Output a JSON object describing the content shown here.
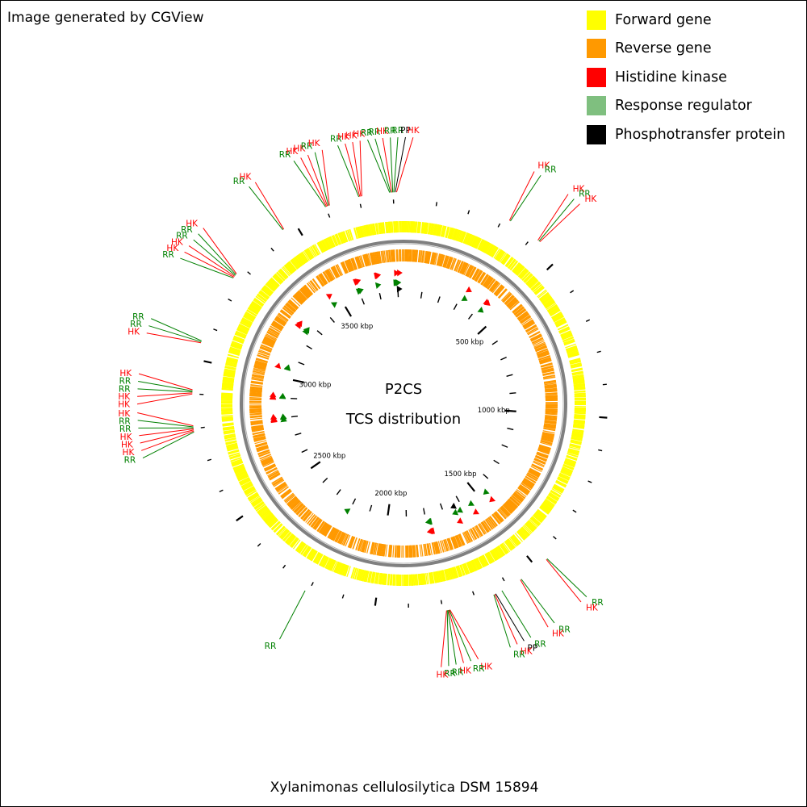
{
  "credit": "Image generated by CGView",
  "legend": [
    {
      "label": "Forward gene",
      "color": "#ffff00",
      "icon": "square-swatch"
    },
    {
      "label": "Reverse gene",
      "color": "#ff9900",
      "icon": "square-swatch"
    },
    {
      "label": "Histidine kinase",
      "color": "#ff0000",
      "icon": "square-swatch"
    },
    {
      "label": "Response regulator",
      "color": "#7fbf7f",
      "icon": "square-swatch"
    },
    {
      "label": "Phosphotransfer protein",
      "color": "#000000",
      "icon": "square-swatch"
    }
  ],
  "center_title": "P2CS",
  "center_subtitle": "TCS distribution",
  "organism": "Xylanimonas cellulosilytica DSM 15894",
  "genome_length_kbp": 3830,
  "scale_labels": [
    "500 kbp",
    "1000 kbp",
    "1500 kbp",
    "2000 kbp",
    "2500 kbp",
    "3000 kbp",
    "3500 kbp"
  ],
  "scale_positions_kbp": [
    500,
    1000,
    1500,
    2000,
    2500,
    3000,
    3500
  ],
  "colors": {
    "forward": "#ffff00",
    "reverse": "#ff9900",
    "hk": "#ff0000",
    "rr_marker": "#008000",
    "rr_label": "#008000",
    "pp": "#000000",
    "backbone": "#808080"
  },
  "features": [
    {
      "type": "HK",
      "label": "HK",
      "position_kbp": 320
    },
    {
      "type": "RR",
      "label": "RR",
      "position_kbp": 323
    },
    {
      "type": "HK",
      "label": "HK",
      "position_kbp": 420
    },
    {
      "type": "RR",
      "label": "RR",
      "position_kbp": 424
    },
    {
      "type": "HK",
      "label": "HK",
      "position_kbp": 427
    },
    {
      "type": "RR",
      "label": "RR",
      "position_kbp": 1460
    },
    {
      "type": "HK",
      "label": "HK",
      "position_kbp": 1463
    },
    {
      "type": "RR",
      "label": "RR",
      "position_kbp": 1555
    },
    {
      "type": "HK",
      "label": "HK",
      "position_kbp": 1558
    },
    {
      "type": "RR",
      "label": "RR",
      "position_kbp": 1620
    },
    {
      "type": "PP",
      "label": "PP",
      "position_kbp": 1640
    },
    {
      "type": "HK",
      "label": "HK",
      "position_kbp": 1643
    },
    {
      "type": "RR",
      "label": "RR",
      "position_kbp": 1646
    },
    {
      "type": "HK",
      "label": "HK",
      "position_kbp": 1780
    },
    {
      "type": "RR",
      "label": "RR",
      "position_kbp": 1782
    },
    {
      "type": "HK",
      "label": "HK",
      "position_kbp": 1784
    },
    {
      "type": "RR",
      "label": "RR",
      "position_kbp": 1786
    },
    {
      "type": "RR",
      "label": "RR",
      "position_kbp": 1788
    },
    {
      "type": "HK",
      "label": "HK",
      "position_kbp": 1790
    },
    {
      "type": "RR",
      "label": "RR",
      "position_kbp": 2210
    },
    {
      "type": "RR",
      "label": "RR",
      "position_kbp": 2790
    },
    {
      "type": "HK",
      "label": "HK",
      "position_kbp": 2793
    },
    {
      "type": "HK",
      "label": "HK",
      "position_kbp": 2796
    },
    {
      "type": "HK",
      "label": "HK",
      "position_kbp": 2799
    },
    {
      "type": "RR",
      "label": "RR",
      "position_kbp": 2802
    },
    {
      "type": "RR",
      "label": "RR",
      "position_kbp": 2805
    },
    {
      "type": "HK",
      "label": "HK",
      "position_kbp": 2808
    },
    {
      "type": "HK",
      "label": "HK",
      "position_kbp": 2900
    },
    {
      "type": "HK",
      "label": "HK",
      "position_kbp": 2903
    },
    {
      "type": "RR",
      "label": "RR",
      "position_kbp": 2906
    },
    {
      "type": "RR",
      "label": "RR",
      "position_kbp": 2909
    },
    {
      "type": "HK",
      "label": "HK",
      "position_kbp": 2912
    },
    {
      "type": "HK",
      "label": "HK",
      "position_kbp": 3050
    },
    {
      "type": "RR",
      "label": "RR",
      "position_kbp": 3053
    },
    {
      "type": "RR",
      "label": "RR",
      "position_kbp": 3056
    },
    {
      "type": "RR",
      "label": "RR",
      "position_kbp": 3260
    },
    {
      "type": "HK",
      "label": "HK",
      "position_kbp": 3263
    },
    {
      "type": "HK",
      "label": "HK",
      "position_kbp": 3266
    },
    {
      "type": "RR",
      "label": "RR",
      "position_kbp": 3269
    },
    {
      "type": "RR",
      "label": "RR",
      "position_kbp": 3272
    },
    {
      "type": "HK",
      "label": "HK",
      "position_kbp": 3275
    },
    {
      "type": "RR",
      "label": "RR",
      "position_kbp": 3460
    },
    {
      "type": "HK",
      "label": "HK",
      "position_kbp": 3463
    },
    {
      "type": "RR",
      "label": "RR",
      "position_kbp": 3600
    },
    {
      "type": "HK",
      "label": "HK",
      "position_kbp": 3603
    },
    {
      "type": "HK",
      "label": "HK",
      "position_kbp": 3606
    },
    {
      "type": "RR",
      "label": "RR",
      "position_kbp": 3609
    },
    {
      "type": "HK",
      "label": "HK",
      "position_kbp": 3612
    },
    {
      "type": "RR",
      "label": "RR",
      "position_kbp": 3700
    },
    {
      "type": "HK",
      "label": "HK",
      "position_kbp": 3703
    },
    {
      "type": "HK",
      "label": "HK",
      "position_kbp": 3706
    },
    {
      "type": "HK",
      "label": "HK",
      "position_kbp": 3709
    },
    {
      "type": "RR",
      "label": "RR",
      "position_kbp": 3790
    },
    {
      "type": "RR",
      "label": "RR",
      "position_kbp": 3793
    },
    {
      "type": "HK",
      "label": "HK",
      "position_kbp": 3796
    },
    {
      "type": "RR",
      "label": "RR",
      "position_kbp": 3799
    },
    {
      "type": "RR",
      "label": "RR",
      "position_kbp": 3802
    },
    {
      "type": "PP",
      "label": "PP",
      "position_kbp": 3806
    },
    {
      "type": "HK",
      "label": "HK",
      "position_kbp": 3810
    }
  ]
}
